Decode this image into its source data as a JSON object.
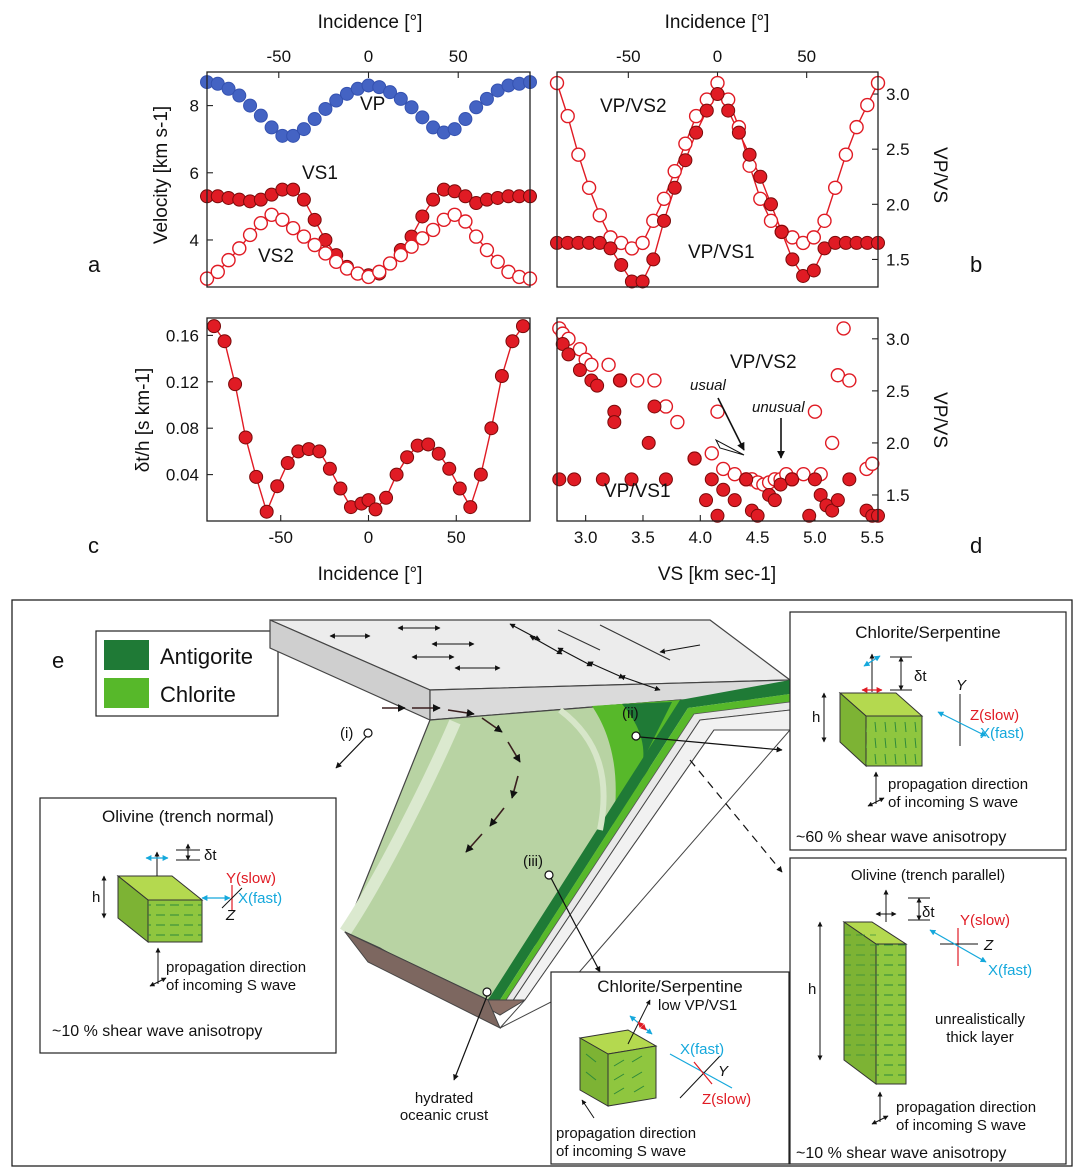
{
  "chart_data": [
    {
      "panel": "a",
      "type": "scatter",
      "x_top_label": "Incidence [°]",
      "ylabel": "Velocity [km s-1]",
      "xlim": [
        -90,
        90
      ],
      "ylim": [
        2.6,
        9.0
      ],
      "xticks": [
        -50,
        0,
        50
      ],
      "yticks": [
        4,
        6,
        8
      ],
      "series": [
        {
          "name": "VP",
          "marker": "filled",
          "color": "#4463c3",
          "connected": false,
          "x": [
            -90,
            -84,
            -78,
            -72,
            -66,
            -60,
            -54,
            -48,
            -42,
            -36,
            -30,
            -24,
            -18,
            -12,
            -6,
            0,
            6,
            12,
            18,
            24,
            30,
            36,
            42,
            48,
            54,
            60,
            66,
            72,
            78,
            84,
            90
          ],
          "y": [
            8.7,
            8.65,
            8.5,
            8.3,
            8.0,
            7.7,
            7.35,
            7.1,
            7.1,
            7.3,
            7.6,
            7.9,
            8.15,
            8.35,
            8.5,
            8.6,
            8.55,
            8.4,
            8.2,
            7.95,
            7.65,
            7.35,
            7.2,
            7.3,
            7.6,
            7.95,
            8.2,
            8.45,
            8.6,
            8.65,
            8.7
          ]
        },
        {
          "name": "VS1",
          "marker": "filled",
          "color": "#e01b24",
          "connected": true,
          "x": [
            -90,
            -84,
            -78,
            -72,
            -66,
            -60,
            -54,
            -48,
            -42,
            -36,
            -30,
            -24,
            -18,
            -12,
            -6,
            0,
            6,
            12,
            18,
            24,
            30,
            36,
            42,
            48,
            54,
            60,
            66,
            72,
            78,
            84,
            90
          ],
          "y": [
            5.3,
            5.3,
            5.25,
            5.2,
            5.15,
            5.2,
            5.35,
            5.5,
            5.5,
            5.2,
            4.6,
            4.0,
            3.55,
            3.2,
            3.0,
            2.95,
            3.0,
            3.3,
            3.7,
            4.1,
            4.7,
            5.2,
            5.5,
            5.45,
            5.3,
            5.1,
            5.2,
            5.25,
            5.3,
            5.3,
            5.3
          ]
        },
        {
          "name": "VS2",
          "marker": "open",
          "color": "#e01b24",
          "connected": true,
          "x": [
            -90,
            -84,
            -78,
            -72,
            -66,
            -60,
            -54,
            -48,
            -42,
            -36,
            -30,
            -24,
            -18,
            -12,
            -6,
            0,
            6,
            12,
            18,
            24,
            30,
            36,
            42,
            48,
            54,
            60,
            66,
            72,
            78,
            84,
            90
          ],
          "y": [
            2.85,
            3.05,
            3.4,
            3.75,
            4.15,
            4.5,
            4.75,
            4.6,
            4.35,
            4.1,
            3.85,
            3.6,
            3.35,
            3.15,
            3.0,
            2.9,
            3.05,
            3.3,
            3.55,
            3.8,
            4.05,
            4.3,
            4.6,
            4.75,
            4.55,
            4.1,
            3.7,
            3.35,
            3.05,
            2.9,
            2.85
          ]
        }
      ]
    },
    {
      "panel": "b",
      "type": "scatter",
      "x_top_label": "Incidence [°]",
      "ylabel_right": "VP/VS",
      "xlim": [
        -90,
        90
      ],
      "ylim": [
        1.25,
        3.2
      ],
      "xticks": [
        -50,
        0,
        50
      ],
      "yticks": [
        1.5,
        2.0,
        2.5,
        3.0
      ],
      "series": [
        {
          "name": "VP/VS2",
          "marker": "open",
          "color": "#e01b24",
          "connected": true,
          "x": [
            -90,
            -84,
            -78,
            -72,
            -66,
            -60,
            -54,
            -48,
            -42,
            -36,
            -30,
            -24,
            -18,
            -12,
            -6,
            0,
            6,
            12,
            18,
            24,
            30,
            36,
            42,
            48,
            54,
            60,
            66,
            72,
            78,
            84,
            90
          ],
          "y": [
            3.1,
            2.8,
            2.45,
            2.15,
            1.9,
            1.7,
            1.65,
            1.6,
            1.65,
            1.85,
            2.05,
            2.3,
            2.55,
            2.8,
            2.95,
            3.1,
            2.95,
            2.7,
            2.35,
            2.05,
            1.85,
            1.75,
            1.7,
            1.65,
            1.7,
            1.85,
            2.15,
            2.45,
            2.7,
            2.9,
            3.1
          ]
        },
        {
          "name": "VP/VS1",
          "marker": "filled",
          "color": "#e01b24",
          "connected": true,
          "x": [
            -90,
            -84,
            -78,
            -72,
            -66,
            -60,
            -54,
            -48,
            -42,
            -36,
            -30,
            -24,
            -18,
            -12,
            -6,
            0,
            6,
            12,
            18,
            24,
            30,
            36,
            42,
            48,
            54,
            60,
            66,
            72,
            78,
            84,
            90
          ],
          "y": [
            1.65,
            1.65,
            1.65,
            1.65,
            1.65,
            1.6,
            1.45,
            1.3,
            1.3,
            1.5,
            1.85,
            2.15,
            2.4,
            2.65,
            2.85,
            3.0,
            2.85,
            2.65,
            2.45,
            2.25,
            2.0,
            1.75,
            1.5,
            1.35,
            1.4,
            1.6,
            1.65,
            1.65,
            1.65,
            1.65,
            1.65
          ]
        }
      ]
    },
    {
      "panel": "c",
      "type": "line",
      "xlabel": "Incidence [°]",
      "ylabel": "δt/h [s km-1]",
      "xlim": [
        -92,
        92
      ],
      "ylim": [
        0.0,
        0.175
      ],
      "xticks": [
        -50,
        0,
        50
      ],
      "yticks": [
        0.04,
        0.08,
        0.12,
        0.16
      ],
      "series": [
        {
          "name": "",
          "marker": "filled",
          "color": "#e01b24",
          "connected": true,
          "x": [
            -88,
            -82,
            -76,
            -70,
            -64,
            -58,
            -52,
            -46,
            -40,
            -34,
            -28,
            -22,
            -16,
            -10,
            -4,
            0,
            4,
            10,
            16,
            22,
            28,
            34,
            40,
            46,
            52,
            58,
            64,
            70,
            76,
            82,
            88
          ],
          "y": [
            0.168,
            0.155,
            0.118,
            0.072,
            0.038,
            0.008,
            0.03,
            0.05,
            0.06,
            0.062,
            0.06,
            0.045,
            0.028,
            0.012,
            0.015,
            0.018,
            0.01,
            0.02,
            0.04,
            0.055,
            0.065,
            0.066,
            0.058,
            0.045,
            0.028,
            0.012,
            0.04,
            0.08,
            0.125,
            0.155,
            0.168
          ]
        }
      ]
    },
    {
      "panel": "d",
      "type": "scatter",
      "xlabel": "VS [km sec-1]",
      "ylabel_right": "VP/VS",
      "xlim": [
        2.75,
        5.55
      ],
      "ylim": [
        1.25,
        3.2
      ],
      "xticks": [
        3.0,
        3.5,
        4.0,
        4.5,
        5.0,
        5.5
      ],
      "xtick_labels": [
        "3.0",
        "3.5",
        "4.0",
        "4.5",
        "5.0",
        "5.5"
      ],
      "yticks": [
        1.5,
        2.0,
        2.5,
        3.0
      ],
      "series": [
        {
          "name": "VP/VS2",
          "marker": "open",
          "color": "#e01b24",
          "x": [
            2.77,
            2.8,
            2.85,
            2.95,
            3.0,
            3.05,
            3.2,
            3.3,
            3.45,
            3.6,
            3.7,
            3.8,
            3.95,
            4.1,
            4.15,
            4.2,
            4.3,
            4.4,
            4.45,
            4.5,
            4.55,
            4.6,
            4.65,
            4.7,
            4.75,
            4.8,
            4.9,
            5.0,
            5.05,
            5.15,
            5.2,
            5.25,
            5.3,
            5.45,
            5.5
          ],
          "y": [
            3.1,
            3.05,
            3.0,
            2.9,
            2.8,
            2.75,
            2.75,
            2.6,
            2.6,
            2.6,
            2.35,
            2.2,
            1.85,
            1.9,
            2.3,
            1.75,
            1.7,
            1.65,
            1.65,
            1.62,
            1.6,
            1.62,
            1.65,
            1.65,
            1.7,
            1.65,
            1.7,
            2.3,
            1.7,
            2.0,
            2.65,
            3.1,
            2.6,
            1.75,
            1.8
          ]
        },
        {
          "name": "VP/VS1",
          "marker": "filled",
          "color": "#e01b24",
          "x": [
            2.77,
            2.8,
            2.85,
            2.9,
            2.95,
            3.05,
            3.1,
            3.15,
            3.25,
            3.25,
            3.3,
            3.4,
            3.55,
            3.6,
            3.7,
            3.95,
            4.05,
            4.1,
            4.15,
            4.2,
            4.3,
            4.4,
            4.45,
            4.5,
            4.6,
            4.65,
            4.7,
            4.8,
            4.95,
            5.0,
            5.05,
            5.1,
            5.15,
            5.2,
            5.3,
            5.45,
            5.5,
            5.55
          ],
          "y": [
            1.65,
            2.95,
            2.85,
            1.65,
            2.7,
            2.6,
            2.55,
            1.65,
            2.3,
            2.2,
            2.6,
            1.65,
            2.0,
            2.35,
            1.65,
            1.85,
            1.45,
            1.65,
            1.3,
            1.55,
            1.45,
            1.65,
            1.35,
            1.3,
            1.5,
            1.45,
            1.6,
            1.65,
            1.3,
            1.65,
            1.5,
            1.4,
            1.35,
            1.45,
            1.65,
            1.35,
            1.3,
            1.3
          ]
        }
      ]
    }
  ],
  "panels": {
    "a": {
      "letter": "a",
      "top_label": "Incidence [°]",
      "ylabel": "Velocity [km s-1]",
      "series_labels": {
        "vp": "VP",
        "vs1": "VS1",
        "vs2": "VS2"
      }
    },
    "b": {
      "letter": "b",
      "top_label": "Incidence [°]",
      "ylabel_right": "VP/VS",
      "series_labels": {
        "r2": "VP/VS2",
        "r1": "VP/VS1"
      }
    },
    "c": {
      "letter": "c",
      "xlabel": "Incidence [°]",
      "ylabel": "δt/h [s km-1]"
    },
    "d": {
      "letter": "d",
      "xlabel": "VS [km sec-1]",
      "ylabel_right": "VP/VS",
      "series_labels": {
        "r2": "VP/VS2",
        "r1": "VP/VS1"
      },
      "annotations": {
        "usual": "usual",
        "unusual": "unusual"
      }
    }
  },
  "diagram": {
    "letter": "e",
    "legend": [
      {
        "label": "Antigorite",
        "color": "#1f7a36"
      },
      {
        "label": "Chlorite",
        "color": "#57b82a"
      }
    ],
    "locations": [
      "(i)",
      "(ii)",
      "(iii)"
    ],
    "crust_label": [
      "hydrated",
      "oceanic crust"
    ],
    "boxes": {
      "olivine_normal": {
        "title": "Olivine (trench normal)",
        "delta": "δt",
        "h": "h",
        "slow": "Y(slow)",
        "fast": "X(fast)",
        "other": "Z",
        "prop": [
          "propagation direction",
          "of incoming S wave"
        ],
        "anis": "~10 % shear wave anisotropy"
      },
      "chl_serp_ii": {
        "title": "Chlorite/Serpentine",
        "delta": "δt",
        "h": "h",
        "y": "Y",
        "slow": "Z(slow)",
        "fast": "X(fast)",
        "prop": [
          "propagation direction",
          "of incoming S wave"
        ],
        "anis": "~60 % shear wave anisotropy"
      },
      "chl_serp_iii": {
        "title": "Chlorite/Serpentine",
        "low": "low VP/VS1",
        "fast": "X(fast)",
        "y": "Y",
        "slow": "Z(slow)",
        "prop": [
          "propagation direction",
          "of incoming S wave"
        ]
      },
      "olivine_parallel": {
        "title": "Olivine (trench parallel)",
        "delta": "δt",
        "h": "h",
        "slow": "Y(slow)",
        "other": "Z",
        "fast": "X(fast)",
        "thick": [
          "unrealistically",
          "thick layer"
        ],
        "prop": [
          "propagation direction",
          "of incoming S wave"
        ],
        "anis": "~10 % shear wave anisotropy"
      }
    },
    "colors": {
      "fast": "#15a8dc",
      "slow": "#e01b24",
      "olivine": "#8fc63f"
    }
  }
}
